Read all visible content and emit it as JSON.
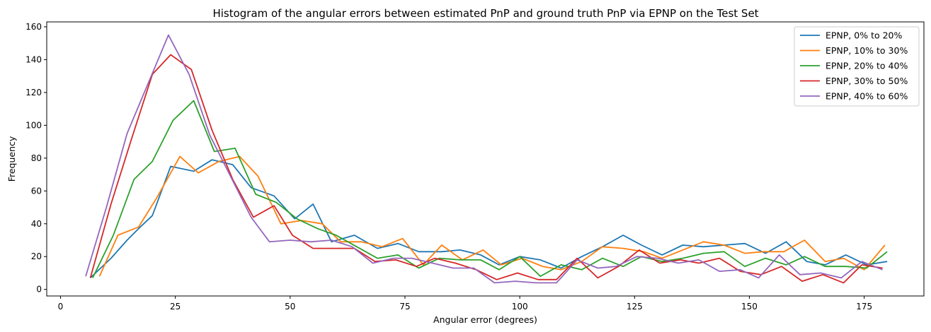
{
  "chart_data": {
    "type": "line",
    "title": "Histogram of the angular errors between estimated PnP and ground truth PnP via EPNP on the Test Set",
    "xlabel": "Angular error (degrees)",
    "ylabel": "Frequency",
    "xlim": [
      -3,
      188
    ],
    "ylim": [
      -4,
      163
    ],
    "xticks": [
      0,
      25,
      50,
      75,
      100,
      125,
      150,
      175
    ],
    "yticks": [
      0,
      20,
      40,
      60,
      80,
      100,
      120,
      140,
      160
    ],
    "grid": false,
    "legend_position": "top-right",
    "series": [
      {
        "name": "EPNP, 0% to 20%",
        "color": "#1f77b4",
        "x": [
          6.5,
          11,
          14.5,
          17,
          20,
          24,
          29,
          33,
          37.5,
          41.5,
          46.5,
          51,
          55,
          59,
          64,
          69,
          73.5,
          78,
          83,
          87,
          91.5,
          95.5,
          100,
          104.5,
          109,
          113.5,
          118,
          122.5,
          126.5,
          131,
          135.5,
          140,
          144.5,
          149,
          153.5,
          158,
          162.5,
          166.5,
          171,
          175.5,
          180
        ],
        "y": [
          7,
          19,
          30,
          37,
          45,
          75,
          72,
          79,
          76,
          62,
          57,
          43,
          52,
          29,
          33,
          25,
          28,
          23,
          23,
          24,
          21,
          15,
          20,
          18,
          13,
          20,
          26,
          33,
          27,
          21,
          27,
          26,
          27,
          28,
          22,
          29,
          17,
          15,
          21,
          15,
          17
        ]
      },
      {
        "name": "EPNP, 10% to 30%",
        "color": "#ff7f0e",
        "x": [
          8.5,
          12.5,
          17,
          21,
          26,
          30,
          34.5,
          39,
          43,
          48,
          52.5,
          57,
          61,
          65.5,
          70,
          74.5,
          79,
          83,
          87.5,
          92,
          96,
          100.5,
          105,
          109,
          113.5,
          118,
          122.5,
          127,
          131,
          135.5,
          140,
          144.5,
          149,
          153,
          157.5,
          162,
          166.5,
          170.5,
          175,
          179.5
        ],
        "y": [
          8,
          33,
          38,
          56,
          81,
          71,
          78,
          81,
          69,
          40,
          42,
          40,
          29,
          29,
          26,
          31,
          15,
          27,
          18,
          24,
          15,
          19,
          14,
          12,
          17,
          26,
          25,
          23,
          19,
          24,
          29,
          27,
          22,
          23,
          23,
          30,
          17,
          19,
          12,
          27
        ]
      },
      {
        "name": "EPNP, 20% to 40%",
        "color": "#2ca02c",
        "x": [
          7,
          11.5,
          16,
          20,
          24.5,
          29,
          33.5,
          38,
          42.5,
          47,
          51.5,
          56,
          60,
          64.5,
          69,
          73.5,
          78,
          82.5,
          87,
          91.5,
          95.5,
          100,
          104.5,
          109,
          113.5,
          118,
          122.5,
          126.5,
          131,
          135.5,
          140,
          144.5,
          149,
          153.5,
          158,
          162,
          166.5,
          171,
          175.5,
          180
        ],
        "y": [
          7,
          33,
          67,
          78,
          103,
          115,
          84,
          86,
          58,
          53,
          43,
          37,
          33,
          26,
          19,
          21,
          13,
          19,
          18,
          18,
          12,
          20,
          8,
          15,
          12,
          19,
          14,
          20,
          17,
          19,
          22,
          23,
          14,
          19,
          15,
          20,
          14,
          14,
          13,
          23
        ]
      },
      {
        "name": "EPNP, 30% to 50%",
        "color": "#d62728",
        "x": [
          6.5,
          11,
          15.5,
          20,
          24,
          28.5,
          33,
          37.5,
          42,
          46.5,
          50.5,
          55,
          59.5,
          64,
          68.5,
          73,
          77.5,
          81.5,
          86,
          90.5,
          95,
          99.5,
          104,
          108,
          112.5,
          117,
          121.5,
          126,
          130.5,
          135,
          139,
          143.5,
          148,
          152.5,
          157,
          161.5,
          166,
          170.5,
          174.5,
          179
        ],
        "y": [
          7,
          52,
          92,
          131,
          143,
          134,
          97,
          67,
          44,
          51,
          33,
          25,
          25,
          25,
          17,
          18,
          14,
          19,
          16,
          12,
          6,
          10,
          6,
          6,
          19,
          7,
          14,
          24,
          16,
          18,
          16,
          19,
          11,
          9,
          14,
          5,
          9,
          4,
          15,
          13
        ]
      },
      {
        "name": "EPNP, 40% to 60%",
        "color": "#9467bd",
        "x": [
          5.5,
          10,
          14.5,
          19,
          23.5,
          28,
          32.5,
          37,
          41.5,
          45.5,
          50,
          54.5,
          59,
          63.5,
          68,
          72.5,
          76.5,
          81,
          85.5,
          90,
          94.5,
          99,
          103.5,
          108,
          112.5,
          117,
          121,
          125.5,
          130,
          134.5,
          139,
          143.5,
          148,
          152,
          156.5,
          161,
          165.5,
          170,
          174.5,
          179
        ],
        "y": [
          8,
          50,
          95,
          125,
          155,
          131,
          94,
          69,
          44,
          29,
          30,
          29,
          30,
          26,
          16,
          19,
          19,
          16,
          13,
          13,
          4,
          5,
          4,
          4,
          18,
          13,
          14,
          20,
          19,
          16,
          18,
          11,
          12,
          7,
          21,
          9,
          10,
          7,
          17,
          12
        ]
      }
    ]
  }
}
